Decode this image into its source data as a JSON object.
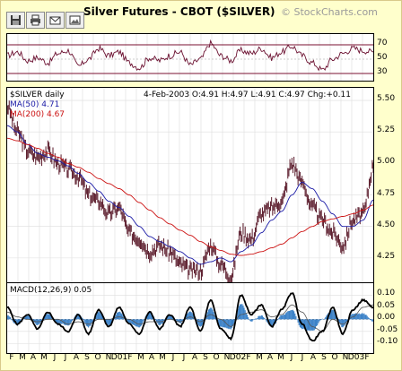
{
  "header": {
    "title": "Silver Futures - CBOT ($SILVER)",
    "brand": "© StockCharts.com"
  },
  "toolbar": {
    "icons": [
      "save-icon",
      "print-icon",
      "email-icon",
      "image-icon"
    ]
  },
  "legend": {
    "symbol": "$SILVER daily",
    "ma50": "MA(50) 4.71",
    "ma200": "MA(200) 4.67",
    "quote": "4-Feb-2003 O:4.91 H:4.97 L:4.91 C:4.97 Chg:+0.11",
    "macd": "MACD(12,26,9) 0.05"
  },
  "colors": {
    "price": "#5a1a2a",
    "ma50": "#1a1aa6",
    "ma200": "#cc1111",
    "rsi": "#6b1030",
    "macd": "#000000",
    "histogram": "#3c82c8"
  },
  "chart_data": [
    {
      "type": "line",
      "name": "rsi",
      "x": [
        "F",
        "M",
        "A",
        "M",
        "J",
        "J",
        "A",
        "S",
        "O",
        "N",
        "D",
        "01",
        "F",
        "M",
        "A",
        "M",
        "J",
        "J",
        "A",
        "S",
        "O",
        "N",
        "D",
        "02",
        "F",
        "M",
        "A",
        "M",
        "J",
        "J",
        "A",
        "S",
        "O",
        "N",
        "D",
        "03",
        "F"
      ],
      "series": [
        {
          "values": [
            55,
            60,
            48,
            52,
            45,
            58,
            62,
            40,
            50,
            65,
            55,
            60,
            45,
            38,
            52,
            48,
            55,
            60,
            42,
            50,
            72,
            55,
            48,
            62,
            58,
            65,
            52,
            60,
            68,
            55,
            45,
            35,
            50,
            58,
            65,
            62,
            60
          ]
        }
      ],
      "ylim": [
        20,
        85
      ],
      "reference_lines": [
        30,
        50,
        70
      ],
      "yticks": [
        "70",
        "50",
        "30"
      ]
    },
    {
      "type": "line",
      "name": "price",
      "x": [
        "F",
        "M",
        "A",
        "M",
        "J",
        "J",
        "A",
        "S",
        "O",
        "N",
        "D",
        "01",
        "F",
        "M",
        "A",
        "M",
        "J",
        "J",
        "A",
        "S",
        "O",
        "N",
        "D",
        "02",
        "F",
        "M",
        "A",
        "M",
        "J",
        "J",
        "A",
        "S",
        "O",
        "N",
        "D",
        "03",
        "F"
      ],
      "series": [
        {
          "name": "$SILVER",
          "values": [
            5.45,
            5.25,
            5.1,
            5.05,
            5.1,
            5.0,
            4.95,
            4.9,
            4.75,
            4.7,
            4.6,
            4.65,
            4.45,
            4.4,
            4.3,
            4.35,
            4.3,
            4.2,
            4.15,
            4.15,
            4.35,
            4.2,
            4.1,
            4.45,
            4.4,
            4.6,
            4.65,
            4.7,
            5.0,
            4.85,
            4.65,
            4.55,
            4.45,
            4.35,
            4.55,
            4.6,
            4.97
          ]
        },
        {
          "name": "MA(50)",
          "values": [
            5.3,
            5.25,
            5.15,
            5.08,
            5.05,
            5.02,
            4.98,
            4.92,
            4.85,
            4.78,
            4.7,
            4.65,
            4.58,
            4.5,
            4.42,
            4.38,
            4.34,
            4.3,
            4.25,
            4.2,
            4.22,
            4.25,
            4.22,
            4.3,
            4.35,
            4.45,
            4.55,
            4.62,
            4.75,
            4.85,
            4.8,
            4.7,
            4.6,
            4.5,
            4.5,
            4.55,
            4.71
          ]
        },
        {
          "name": "MA(200)",
          "values": [
            5.2,
            5.18,
            5.15,
            5.12,
            5.08,
            5.05,
            5.0,
            4.97,
            4.93,
            4.88,
            4.84,
            4.8,
            4.75,
            4.69,
            4.63,
            4.57,
            4.52,
            4.47,
            4.43,
            4.38,
            4.34,
            4.31,
            4.28,
            4.27,
            4.28,
            4.3,
            4.33,
            4.36,
            4.41,
            4.46,
            4.5,
            4.54,
            4.56,
            4.58,
            4.6,
            4.63,
            4.67
          ]
        }
      ],
      "ylim": [
        4.05,
        5.6
      ],
      "yticks": [
        "5.50",
        "5.25",
        "5.00",
        "4.75",
        "4.50",
        "4.25"
      ]
    },
    {
      "type": "line",
      "name": "macd",
      "x": [
        "F",
        "M",
        "A",
        "M",
        "J",
        "J",
        "A",
        "S",
        "O",
        "N",
        "D",
        "01",
        "F",
        "M",
        "A",
        "M",
        "J",
        "J",
        "A",
        "S",
        "O",
        "N",
        "D",
        "02",
        "F",
        "M",
        "A",
        "M",
        "J",
        "J",
        "A",
        "S",
        "O",
        "N",
        "D",
        "03",
        "F"
      ],
      "series": [
        {
          "name": "MACD",
          "values": [
            0.05,
            -0.02,
            0.02,
            -0.04,
            0.03,
            -0.02,
            -0.05,
            0.02,
            -0.06,
            0.04,
            -0.03,
            0.05,
            -0.02,
            -0.06,
            0.03,
            -0.04,
            0.02,
            -0.03,
            0.05,
            -0.05,
            0.08,
            -0.04,
            -0.08,
            0.1,
            0.02,
            0.06,
            -0.03,
            0.04,
            0.11,
            -0.02,
            -0.09,
            -0.05,
            0.05,
            -0.06,
            0.04,
            0.08,
            0.05
          ]
        },
        {
          "name": "Signal",
          "values": [
            0.03,
            0.01,
            0.0,
            -0.01,
            0.0,
            0.0,
            -0.02,
            -0.01,
            -0.02,
            0.0,
            0.0,
            0.01,
            0.0,
            -0.02,
            -0.01,
            -0.01,
            0.0,
            -0.01,
            0.01,
            -0.01,
            0.02,
            0.0,
            -0.03,
            0.02,
            0.03,
            0.04,
            0.01,
            0.02,
            0.06,
            0.03,
            -0.03,
            -0.05,
            0.0,
            -0.02,
            0.01,
            0.05,
            0.06
          ]
        }
      ],
      "ylim": [
        -0.14,
        0.15
      ],
      "yticks": [
        "0.10",
        "0.05",
        "0.00",
        "-0.05",
        "-0.10"
      ]
    }
  ],
  "xaxis": {
    "labels": [
      "F",
      "M",
      "A",
      "M",
      "J",
      "J",
      "A",
      "S",
      "O",
      "N",
      "D01",
      "F",
      "M",
      "A",
      "M",
      "J",
      "J",
      "A",
      "S",
      "O",
      "N",
      "D02",
      "F",
      "M",
      "A",
      "M",
      "J",
      "J",
      "A",
      "S",
      "O",
      "N",
      "D03",
      "F"
    ]
  }
}
